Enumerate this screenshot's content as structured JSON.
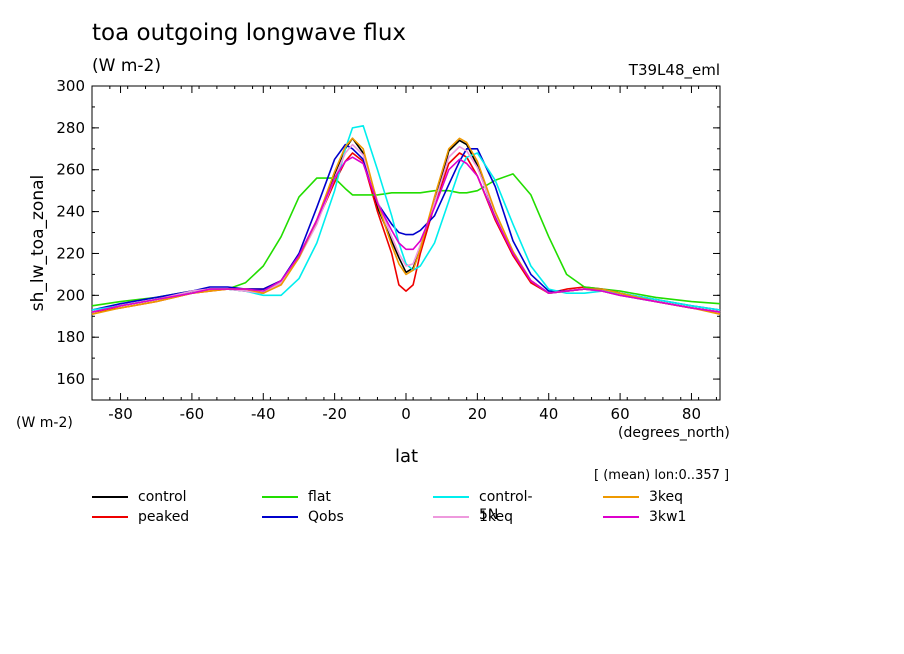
{
  "header": {
    "title": "toa outgoing longwave flux",
    "units": "(W m-2)",
    "run": "T39L48_eml",
    "mean_note": "[ (mean) lon:0..357 ]"
  },
  "chart_data": {
    "type": "line",
    "title": "toa outgoing longwave flux",
    "xlabel": "lat",
    "ylabel": "sh_lw_toa_zonal",
    "x_units": "(degrees_north)",
    "y_units": "(W m-2)",
    "xlim": [
      -88,
      88
    ],
    "ylim": [
      150,
      300
    ],
    "xticks": [
      -80,
      -60,
      -40,
      -20,
      0,
      20,
      40,
      60,
      80
    ],
    "yticks": [
      160,
      180,
      200,
      220,
      240,
      260,
      280,
      300
    ],
    "grid": false,
    "legend_position": "bottom",
    "x": [
      -88,
      -80,
      -70,
      -60,
      -55,
      -50,
      -45,
      -40,
      -35,
      -30,
      -25,
      -20,
      -17,
      -15,
      -12,
      -8,
      -4,
      -2,
      0,
      2,
      4,
      8,
      12,
      15,
      17,
      20,
      25,
      30,
      35,
      40,
      45,
      50,
      55,
      60,
      70,
      80,
      88
    ],
    "series": [
      {
        "name": "control",
        "color": "#000000",
        "values": [
          192,
          195,
          198,
          202,
          203,
          203,
          202,
          201,
          206,
          218,
          235,
          258,
          270,
          275,
          268,
          242,
          226,
          218,
          211,
          213,
          222,
          244,
          269,
          274,
          272,
          262,
          238,
          220,
          207,
          201,
          202,
          203,
          202,
          200,
          197,
          194,
          192
        ]
      },
      {
        "name": "peaked",
        "color": "#ee0000",
        "values": [
          192,
          194,
          197,
          201,
          202,
          203,
          203,
          203,
          207,
          219,
          235,
          254,
          264,
          268,
          264,
          240,
          220,
          205,
          202,
          205,
          220,
          243,
          263,
          268,
          266,
          257,
          236,
          219,
          206,
          201,
          203,
          204,
          203,
          201,
          197,
          194,
          192
        ]
      },
      {
        "name": "flat",
        "color": "#22dd00",
        "values": [
          195,
          197,
          199,
          202,
          203,
          203,
          206,
          214,
          228,
          247,
          256,
          256,
          251,
          248,
          248,
          248,
          249,
          249,
          249,
          249,
          249,
          250,
          250,
          249,
          249,
          250,
          255,
          258,
          248,
          228,
          210,
          204,
          203,
          202,
          199,
          197,
          196
        ]
      },
      {
        "name": "Qobs",
        "color": "#0000cc",
        "values": [
          193,
          196,
          199,
          202,
          204,
          204,
          203,
          203,
          207,
          220,
          242,
          265,
          272,
          270,
          265,
          244,
          234,
          230,
          229,
          229,
          231,
          238,
          253,
          264,
          270,
          270,
          252,
          226,
          210,
          202,
          202,
          203,
          203,
          201,
          198,
          195,
          193
        ]
      },
      {
        "name": "control-5N",
        "color": "#00eeee",
        "values": [
          193,
          195,
          198,
          201,
          203,
          203,
          202,
          200,
          200,
          208,
          225,
          250,
          270,
          280,
          281,
          260,
          238,
          225,
          215,
          212,
          214,
          225,
          245,
          260,
          266,
          268,
          255,
          234,
          214,
          203,
          201,
          201,
          202,
          201,
          198,
          195,
          193
        ]
      },
      {
        "name": "1keq",
        "color": "#ee99dd",
        "values": [
          192,
          195,
          198,
          202,
          203,
          203,
          202,
          201,
          206,
          218,
          234,
          256,
          268,
          272,
          267,
          245,
          228,
          220,
          214,
          215,
          224,
          244,
          266,
          271,
          269,
          261,
          239,
          221,
          207,
          201,
          202,
          203,
          202,
          200,
          197,
          194,
          192
        ]
      },
      {
        "name": "3keq",
        "color": "#ee9900",
        "values": [
          191,
          194,
          197,
          201,
          202,
          203,
          203,
          201,
          205,
          218,
          236,
          259,
          271,
          275,
          270,
          244,
          224,
          215,
          210,
          212,
          222,
          247,
          270,
          275,
          273,
          264,
          240,
          221,
          207,
          201,
          202,
          203,
          203,
          201,
          197,
          194,
          191
        ]
      },
      {
        "name": "3kw1",
        "color": "#dd00cc",
        "values": [
          192,
          195,
          198,
          201,
          203,
          203,
          203,
          202,
          207,
          219,
          236,
          256,
          264,
          266,
          263,
          244,
          231,
          225,
          222,
          222,
          226,
          242,
          260,
          265,
          263,
          257,
          237,
          220,
          207,
          201,
          202,
          203,
          202,
          200,
          197,
          194,
          192
        ]
      }
    ]
  }
}
